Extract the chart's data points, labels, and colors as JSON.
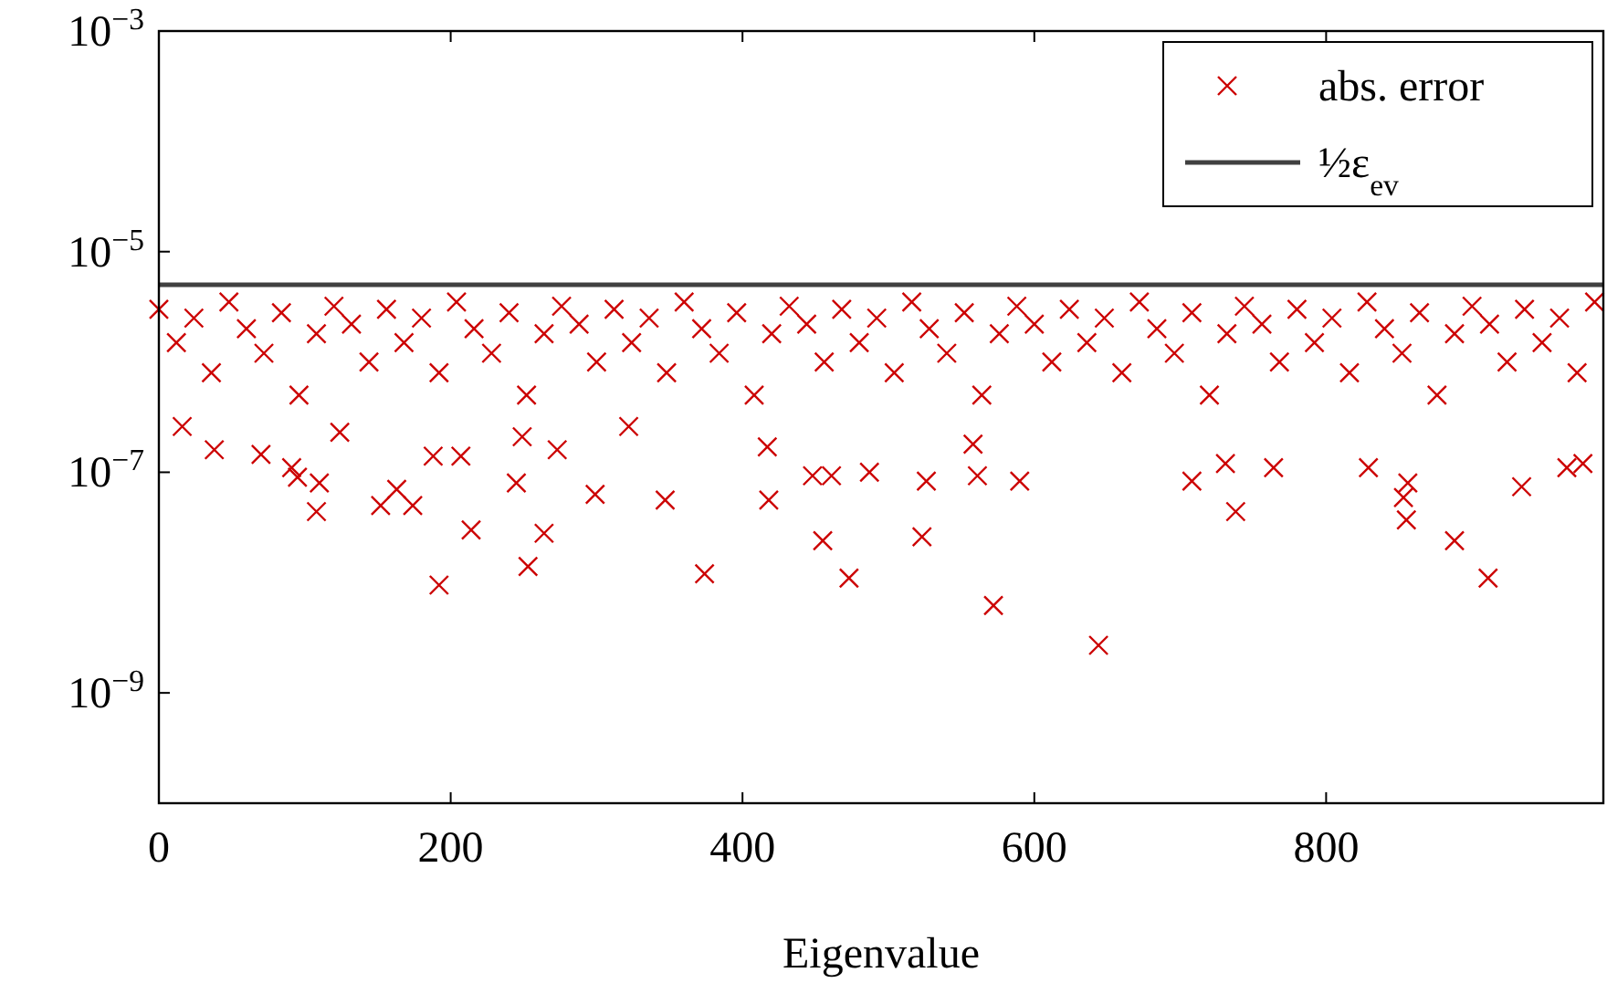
{
  "chart_data": {
    "type": "scatter",
    "xlabel": "Eigenvalue",
    "log": "y",
    "xlim": [
      0,
      990
    ],
    "ylim": [
      1e-10,
      0.001
    ],
    "xticks": [
      0,
      200,
      400,
      600,
      800
    ],
    "yticks": [
      {
        "value": 1e-09,
        "label": "10$^{−9}$"
      },
      {
        "value": 1e-07,
        "label": "10$^{−7}$"
      },
      {
        "value": 1e-05,
        "label": "10$^{−5}$"
      },
      {
        "value": 0.001,
        "label": "10$^{−3}$"
      }
    ],
    "grid": false,
    "legend": "top right",
    "marker": "cross",
    "series": [
      {
        "name": "abs. error",
        "color": "#cc0000",
        "x": [
          0,
          12,
          24,
          36,
          48,
          60,
          72,
          84,
          96,
          108,
          120,
          132,
          144,
          156,
          168,
          180,
          192,
          204,
          216,
          228,
          240,
          252,
          264,
          276,
          288,
          300,
          312,
          324,
          336,
          348,
          360,
          372,
          384,
          396,
          408,
          420,
          432,
          444,
          456,
          468,
          480,
          492,
          504,
          516,
          528,
          540,
          552,
          564,
          576,
          588,
          600,
          612,
          624,
          636,
          648,
          660,
          672,
          684,
          696,
          708,
          720,
          732,
          744,
          756,
          768,
          780,
          792,
          804,
          816,
          828,
          840,
          852,
          864,
          876,
          888,
          900,
          912,
          924,
          936,
          948,
          960,
          972,
          984,
          16,
          38,
          70,
          91,
          95,
          110,
          108,
          124,
          152,
          163,
          174,
          188,
          192,
          214,
          207,
          245,
          249,
          253,
          264,
          273,
          299,
          322,
          347,
          374,
          417,
          418,
          448,
          455,
          461,
          473,
          487,
          523,
          526,
          558,
          561,
          572,
          590,
          644,
          708,
          731,
          738,
          764,
          829,
          853,
          855,
          856,
          888,
          911,
          934,
          965,
          976
        ],
        "values": [
          3e-06,
          1.5e-06,
          2.5e-06,
          8e-07,
          3.5e-06,
          2e-06,
          1.2e-06,
          2.8e-06,
          5e-07,
          1.8e-06,
          3.2e-06,
          2.2e-06,
          1e-06,
          3e-06,
          1.5e-06,
          2.5e-06,
          8e-07,
          3.5e-06,
          2e-06,
          1.2e-06,
          2.8e-06,
          5e-07,
          1.8e-06,
          3.2e-06,
          2.2e-06,
          1e-06,
          3e-06,
          1.5e-06,
          2.5e-06,
          8e-07,
          3.5e-06,
          2e-06,
          1.2e-06,
          2.8e-06,
          5e-07,
          1.8e-06,
          3.2e-06,
          2.2e-06,
          1e-06,
          3e-06,
          1.5e-06,
          2.5e-06,
          8e-07,
          3.5e-06,
          2e-06,
          1.2e-06,
          2.8e-06,
          5e-07,
          1.8e-06,
          3.2e-06,
          2.2e-06,
          1e-06,
          3e-06,
          1.5e-06,
          2.5e-06,
          8e-07,
          3.5e-06,
          2e-06,
          1.2e-06,
          2.8e-06,
          5e-07,
          1.8e-06,
          3.2e-06,
          2.2e-06,
          1e-06,
          3e-06,
          1.5e-06,
          2.5e-06,
          8e-07,
          3.5e-06,
          2e-06,
          1.2e-06,
          2.8e-06,
          5e-07,
          1.8e-06,
          3.2e-06,
          2.2e-06,
          1e-06,
          3e-06,
          1.5e-06,
          2.5e-06,
          8e-07,
          3.5e-06,
          2.6e-07,
          1.6e-07,
          1.45e-07,
          1.1e-07,
          9e-08,
          8e-08,
          4.4e-08,
          2.3e-07,
          5e-08,
          7e-08,
          5e-08,
          1.4e-07,
          9.5e-09,
          3e-08,
          1.4e-07,
          8e-08,
          2.1e-07,
          1.4e-08,
          2.8e-08,
          1.6e-07,
          6.3e-08,
          2.6e-07,
          5.6e-08,
          1.2e-08,
          1.7e-07,
          5.6e-08,
          9.3e-08,
          2.4e-08,
          9.3e-08,
          1.1e-08,
          1e-07,
          2.6e-08,
          8.3e-08,
          1.8e-07,
          9.3e-08,
          6.2e-09,
          8.3e-08,
          2.7e-09,
          8.3e-08,
          1.2e-07,
          4.4e-08,
          1.1e-07,
          1.1e-07,
          5.9e-08,
          3.7e-08,
          8e-08,
          2.4e-08,
          1.1e-08,
          7.4e-08,
          1.1e-07,
          1.2e-07
        ]
      }
    ],
    "ref_lines": [
      {
        "axis": "y",
        "value": 5e-06,
        "label": "½ε$_{ev}$",
        "color": "#404040",
        "line_style": "solid"
      }
    ]
  }
}
